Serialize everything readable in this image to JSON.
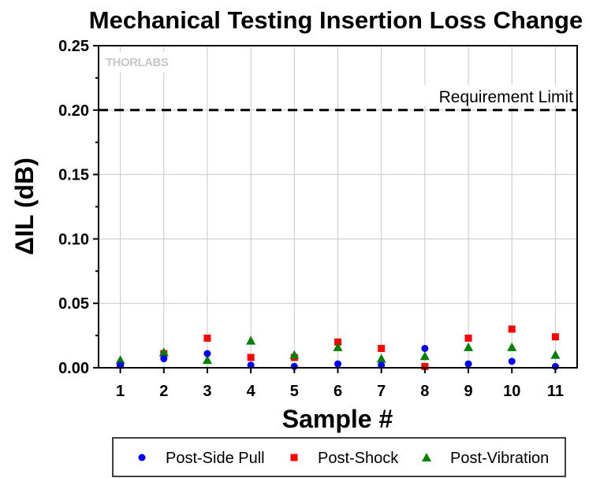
{
  "chart_data": {
    "type": "scatter",
    "title": "Mechanical Testing Insertion Loss Change",
    "xlabel": "Sample #",
    "ylabel": "ΔIL (dB)",
    "ylim": [
      0,
      0.25
    ],
    "xlim": [
      0,
      11
    ],
    "yticks": [
      "0.00",
      "0.05",
      "0.10",
      "0.15",
      "0.20",
      "0.25"
    ],
    "x": [
      "1",
      "2",
      "3",
      "4",
      "5",
      "6",
      "7",
      "8",
      "9",
      "10",
      "11"
    ],
    "grid": true,
    "legend_position": "bottom",
    "series": [
      {
        "name": "Post-Side Pull",
        "marker": "circle",
        "color": "#0000ff",
        "values": [
          0.002,
          0.007,
          0.011,
          0.002,
          0.001,
          0.003,
          0.002,
          0.015,
          0.003,
          0.005,
          0.001
        ]
      },
      {
        "name": "Post-Shock",
        "marker": "square",
        "color": "#ff0000",
        "values": [
          0.002,
          0.011,
          0.023,
          0.008,
          0.008,
          0.02,
          0.015,
          0.001,
          0.023,
          0.03,
          0.024
        ]
      },
      {
        "name": "Post-Vibration",
        "marker": "triangle",
        "color": "#008000",
        "values": [
          0.006,
          0.012,
          0.006,
          0.021,
          0.01,
          0.016,
          0.007,
          0.009,
          0.016,
          0.016,
          0.01
        ]
      }
    ],
    "reference_line": {
      "value": 0.2,
      "label": "Requirement Limit",
      "style": "dashed",
      "color": "#000000"
    },
    "watermark": "THORLABS"
  }
}
